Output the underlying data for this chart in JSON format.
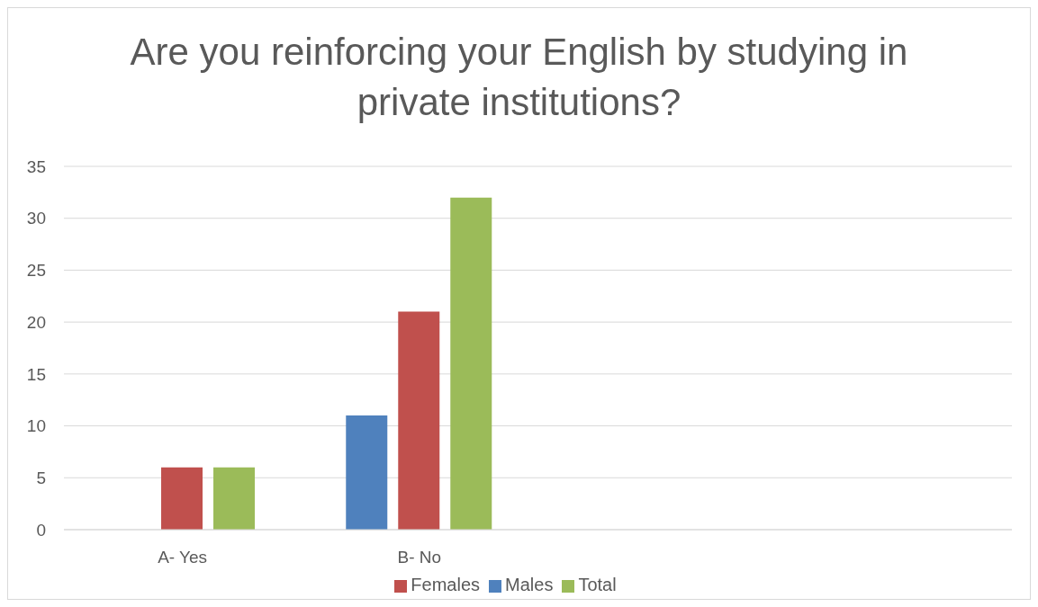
{
  "chart_data": {
    "type": "bar",
    "title": "Are you reinforcing your English by studying in private institutions?",
    "categories": [
      "A- Yes",
      "B- No",
      null,
      null
    ],
    "series": [
      {
        "name": "Males",
        "color": "#4f81bd",
        "values": [
          0,
          11,
          null,
          null
        ]
      },
      {
        "name": "Females",
        "color": "#c0504d",
        "values": [
          6,
          21,
          null,
          null
        ]
      },
      {
        "name": "Total",
        "color": "#9bbb59",
        "values": [
          6,
          32,
          null,
          null
        ]
      }
    ],
    "ylim": [
      0,
      35
    ],
    "yticks": [
      0,
      5,
      10,
      15,
      20,
      25,
      30,
      35
    ],
    "grid": "y",
    "legend": "bottom"
  }
}
